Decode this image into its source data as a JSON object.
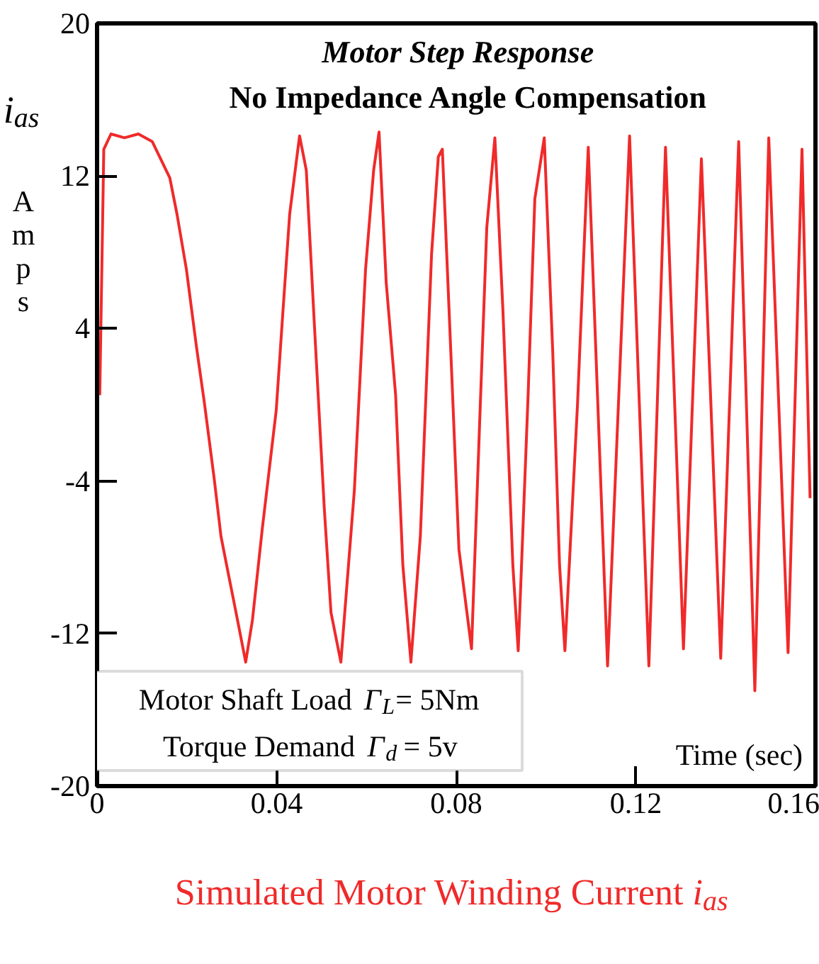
{
  "chart_data": {
    "type": "line",
    "title": "Motor Step Response",
    "subtitle": "No Impedance Angle Compensation",
    "xlabel": "Time (sec)",
    "ylabel": "i$_{as}$ Amps",
    "annotations": [
      "Motor Shaft Load Γ$_{L}$= 5Nm",
      "Torque Demand Γ$_{d}$ = 5v",
      "Simulated Motor Winding Current i$_{as}$"
    ],
    "xlim": [
      0,
      0.16
    ],
    "ylim": [
      -20,
      20
    ],
    "xticks": [
      0,
      0.04,
      0.08,
      0.12,
      0.16
    ],
    "yticks": [
      -20,
      -12,
      -4,
      4,
      12,
      20
    ],
    "grid": false,
    "marker": "none",
    "line_style": "solid",
    "series": [
      {
        "color": "#f02a2a",
        "x": [
          0.0006,
          0.0015,
          0.0031,
          0.0061,
          0.0092,
          0.0123,
          0.0162,
          0.0178,
          0.0199,
          0.0221,
          0.0239,
          0.0261,
          0.0276,
          0.0291,
          0.0307,
          0.0322,
          0.0331,
          0.0346,
          0.0368,
          0.0399,
          0.0414,
          0.0429,
          0.0451,
          0.0466,
          0.0484,
          0.0506,
          0.0521,
          0.0543,
          0.0573,
          0.0598,
          0.0616,
          0.0628,
          0.0644,
          0.0665,
          0.0681,
          0.0699,
          0.072,
          0.0745,
          0.076,
          0.0769,
          0.0788,
          0.0806,
          0.0834,
          0.0852,
          0.0868,
          0.0886,
          0.0904,
          0.0926,
          0.0938,
          0.096,
          0.0975,
          0.0996,
          0.1015,
          0.103,
          0.1042,
          0.107,
          0.1094,
          0.1137,
          0.1186,
          0.1229,
          0.1266,
          0.1306,
          0.1346,
          0.1389,
          0.1429,
          0.1465,
          0.1496,
          0.1539,
          0.157,
          0.1588
        ],
        "values": [
          0.5,
          13.4,
          14.2,
          14.0,
          14.2,
          13.8,
          11.9,
          10,
          7.1,
          3.1,
          0.1,
          -3.9,
          -6.9,
          -8.7,
          -10.6,
          -12.4,
          -13.5,
          -11.3,
          -6.5,
          -0.3,
          4.9,
          10,
          14.1,
          12.3,
          4.2,
          -5.4,
          -10.9,
          -13.5,
          -4.5,
          7.1,
          12.3,
          14.3,
          6.4,
          0.5,
          -8.4,
          -13.5,
          -6.9,
          7.9,
          13,
          13.4,
          2.7,
          -7.6,
          -12.8,
          -1,
          9.3,
          14,
          4.9,
          -8.4,
          -12.9,
          0.5,
          10.8,
          14,
          2.7,
          -8.4,
          -12.9,
          0,
          13.5,
          -13.7,
          14.1,
          -13.7,
          13.5,
          -12.8,
          12.9,
          -13.3,
          13.8,
          -15,
          14,
          -13,
          13.4,
          -4.9
        ]
      }
    ]
  }
}
